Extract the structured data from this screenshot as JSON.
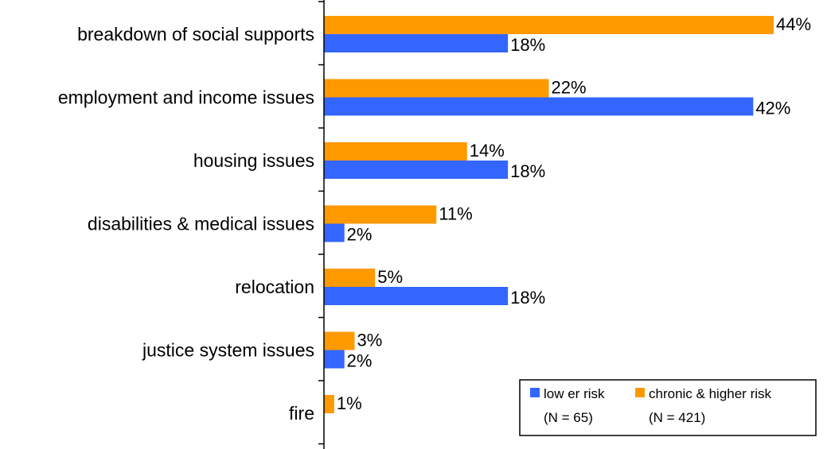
{
  "chart_data": {
    "type": "bar",
    "orientation": "horizontal",
    "title": "",
    "xlabel": "",
    "ylabel": "",
    "xlim": [
      0,
      50
    ],
    "grid": false,
    "legend_position": "bottom-right",
    "categories": [
      "breakdown of social supports",
      "employment and income issues",
      "housing issues",
      "disabilities & medical issues",
      "relocation",
      "justice system issues",
      "fire"
    ],
    "series": [
      {
        "name": "chronic & higher risk",
        "sub_label": "(N = 421)",
        "color": "#FF9900",
        "values": [
          44,
          22,
          14,
          11,
          5,
          3,
          1
        ],
        "labels": [
          "44%",
          "22%",
          "14%",
          "11%",
          "5%",
          "3%",
          "1%"
        ]
      },
      {
        "name": "low er risk",
        "sub_label": "(N = 65)",
        "color": "#3366FF",
        "values": [
          18,
          42,
          18,
          2,
          18,
          2,
          0
        ],
        "labels": [
          "18%",
          "42%",
          "18%",
          "2%",
          "18%",
          "2%",
          ""
        ]
      }
    ]
  }
}
